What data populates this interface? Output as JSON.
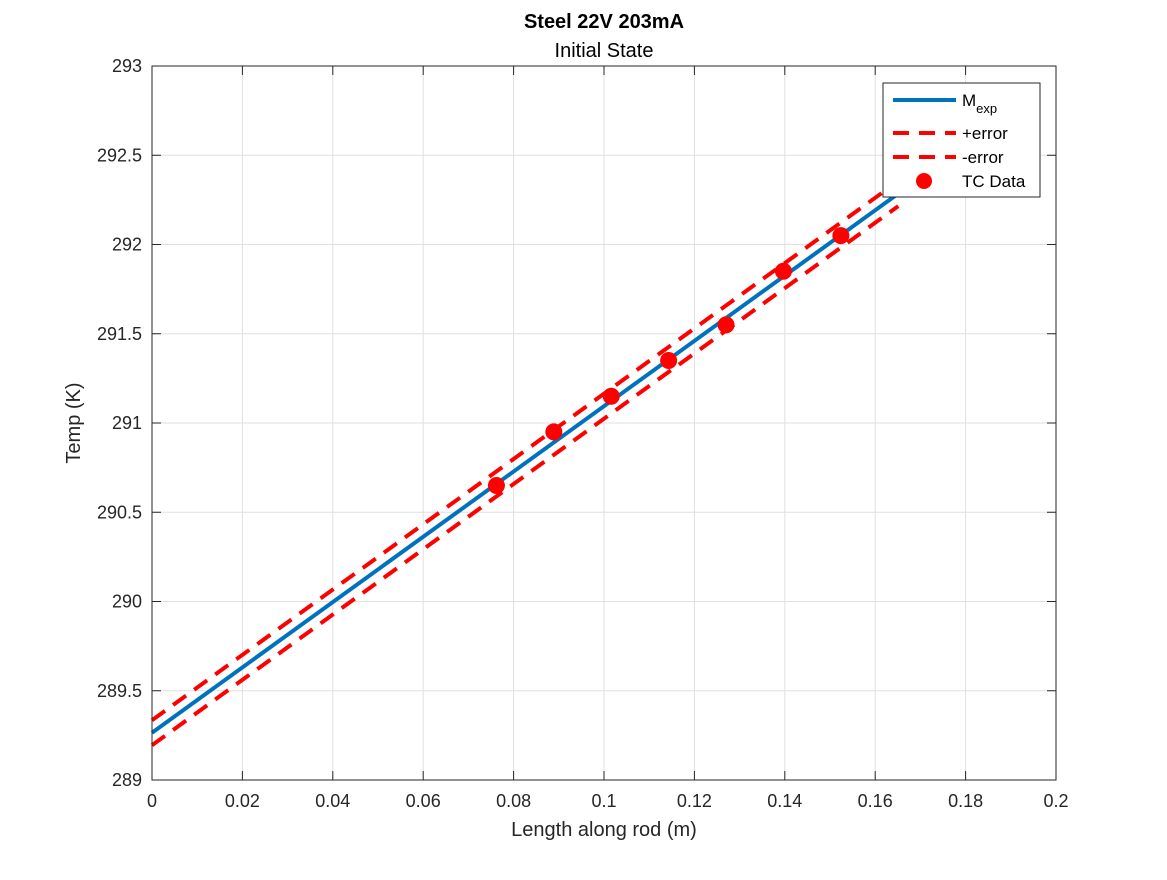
{
  "chart_data": {
    "type": "line",
    "title": "Steel 22V 203mA",
    "subtitle": "Initial State",
    "xlabel": "Length along rod (m)",
    "ylabel": "Temp (K)",
    "xlim": [
      0,
      0.2
    ],
    "ylim": [
      289,
      293
    ],
    "xticks": [
      0,
      0.02,
      0.04,
      0.06,
      0.08,
      0.1,
      0.12,
      0.14,
      0.16,
      0.18,
      0.2
    ],
    "xtick_labels": [
      "0",
      "0.02",
      "0.04",
      "0.06",
      "0.08",
      "0.1",
      "0.12",
      "0.14",
      "0.16",
      "0.18",
      "0.2"
    ],
    "yticks": [
      289,
      289.5,
      290,
      290.5,
      291,
      291.5,
      292,
      292.5,
      293
    ],
    "ytick_labels": [
      "289",
      "289.5",
      "290",
      "290.5",
      "291",
      "291.5",
      "292",
      "292.5",
      "293"
    ],
    "grid": true,
    "legend_position": "top-right",
    "series": [
      {
        "name": "M",
        "name_subscript": "exp",
        "style": "solid",
        "color": "#0072BD",
        "x": [
          0,
          0.1651
        ],
        "y": [
          289.265,
          292.285
        ]
      },
      {
        "name": "+error",
        "style": "dashed",
        "color": "#FF0000",
        "x": [
          0,
          0.1651
        ],
        "y": [
          289.335,
          292.355
        ]
      },
      {
        "name": "-error",
        "style": "dashed",
        "color": "#FF0000",
        "x": [
          0,
          0.1651
        ],
        "y": [
          289.195,
          292.215
        ]
      },
      {
        "name": "TC Data",
        "style": "markers",
        "color": "#FF0000",
        "x": [
          0.0762,
          0.0889,
          0.1016,
          0.1143,
          0.127,
          0.1397,
          0.1524
        ],
        "y": [
          290.65,
          290.95,
          291.15,
          291.35,
          291.55,
          291.85,
          292.05
        ]
      }
    ]
  }
}
